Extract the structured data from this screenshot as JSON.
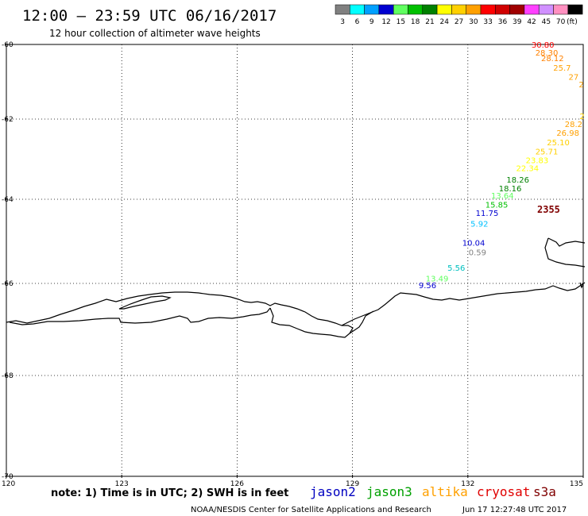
{
  "header": {
    "title": "12:00 – 23:59 UTC 06/16/2017",
    "subtitle": "12 hour collection of altimeter wave heights"
  },
  "legend": {
    "swatches": [
      {
        "color": "#808080",
        "label": "3"
      },
      {
        "color": "#00ffff",
        "label": "6"
      },
      {
        "color": "#00a0ff",
        "label": "9"
      },
      {
        "color": "#0000d0",
        "label": "12"
      },
      {
        "color": "#60ff60",
        "label": "15"
      },
      {
        "color": "#00c000",
        "label": "18"
      },
      {
        "color": "#008000",
        "label": "21"
      },
      {
        "color": "#ffff00",
        "label": "24"
      },
      {
        "color": "#ffd000",
        "label": "27"
      },
      {
        "color": "#ffa000",
        "label": "30"
      },
      {
        "color": "#ff0000",
        "label": "33"
      },
      {
        "color": "#d00000",
        "label": "36"
      },
      {
        "color": "#a00000",
        "label": "39"
      },
      {
        "color": "#ff40ff",
        "label": "42"
      },
      {
        "color": "#d090ff",
        "label": "45"
      },
      {
        "color": "#ff90c0",
        "label": "70"
      },
      {
        "color": "#000000",
        "label": "(ft)"
      }
    ]
  },
  "map": {
    "lat_ticks": [
      "-60",
      "-62",
      "-64",
      "-66",
      "-68",
      "-70"
    ],
    "lon_ticks": [
      "120",
      "123",
      "126",
      "129",
      "132",
      "135"
    ],
    "track_time": {
      "label": "2355",
      "color": "#800000"
    },
    "wave_labels": [
      {
        "value": "30.80",
        "lon": 133.95,
        "lat": -60.08,
        "color": "#ff0000"
      },
      {
        "value": "28.30",
        "lon": 134.05,
        "lat": -60.3,
        "color": "#ff8000"
      },
      {
        "value": "28.12",
        "lon": 134.2,
        "lat": -60.45,
        "color": "#ff8000"
      },
      {
        "value": "25.7",
        "lon": 134.45,
        "lat": -60.7,
        "color": "#ffa000"
      },
      {
        "value": "27",
        "lon": 134.75,
        "lat": -60.95,
        "color": "#ffa000"
      },
      {
        "value": "2",
        "lon": 134.95,
        "lat": -61.15,
        "color": "#ffa000"
      },
      {
        "value": "2",
        "lon": 134.97,
        "lat": -62.0,
        "color": "#ffd000"
      },
      {
        "value": "28.2",
        "lon": 134.75,
        "lat": -62.2,
        "color": "#ffa000"
      },
      {
        "value": "26.98",
        "lon": 134.6,
        "lat": -62.42,
        "color": "#ffa000"
      },
      {
        "value": "25.10",
        "lon": 134.35,
        "lat": -62.65,
        "color": "#ffd000"
      },
      {
        "value": "25.71",
        "lon": 134.05,
        "lat": -62.88,
        "color": "#ffd000"
      },
      {
        "value": "23.83",
        "lon": 133.8,
        "lat": -63.1,
        "color": "#ffff00"
      },
      {
        "value": "22.34",
        "lon": 133.55,
        "lat": -63.3,
        "color": "#ffff00"
      },
      {
        "value": "18.26",
        "lon": 133.3,
        "lat": -63.58,
        "color": "#008000"
      },
      {
        "value": "18.16",
        "lon": 133.1,
        "lat": -63.8,
        "color": "#008000"
      },
      {
        "value": "13.64",
        "lon": 132.9,
        "lat": -63.98,
        "color": "#60ff60"
      },
      {
        "value": "15.85",
        "lon": 132.75,
        "lat": -64.2,
        "color": "#00c000"
      },
      {
        "value": "11.75",
        "lon": 132.5,
        "lat": -64.4,
        "color": "#0000d0"
      },
      {
        "value": "5.92",
        "lon": 132.3,
        "lat": -64.65,
        "color": "#00c0ff"
      },
      {
        "value": "10.04",
        "lon": 132.15,
        "lat": -65.1,
        "color": "#0000d0"
      },
      {
        "value": "0.59",
        "lon": 132.25,
        "lat": -65.33,
        "color": "#808080"
      },
      {
        "value": "5.56",
        "lon": 131.7,
        "lat": -65.7,
        "color": "#00c0c0"
      },
      {
        "value": "13.49",
        "lon": 131.2,
        "lat": -65.95,
        "color": "#60ff60"
      },
      {
        "value": "9.56",
        "lon": 130.95,
        "lat": -66.1,
        "color": "#0000d0"
      }
    ]
  },
  "footer": {
    "note": "note: 1) Time is in UTC; 2) SWH is in feet",
    "satellites": [
      {
        "name": "jason2",
        "color": "#0000c0"
      },
      {
        "name": "jason3",
        "color": "#00a000"
      },
      {
        "name": "altika",
        "color": "#ffa000"
      },
      {
        "name": "cryosat",
        "color": "#e00000"
      },
      {
        "name": "s3a",
        "color": "#800000"
      }
    ],
    "credit": "NOAA/NESDIS Center for Satellite Applications and Research",
    "timestamp": "Jun 17 12:27:48 UTC 2017"
  }
}
